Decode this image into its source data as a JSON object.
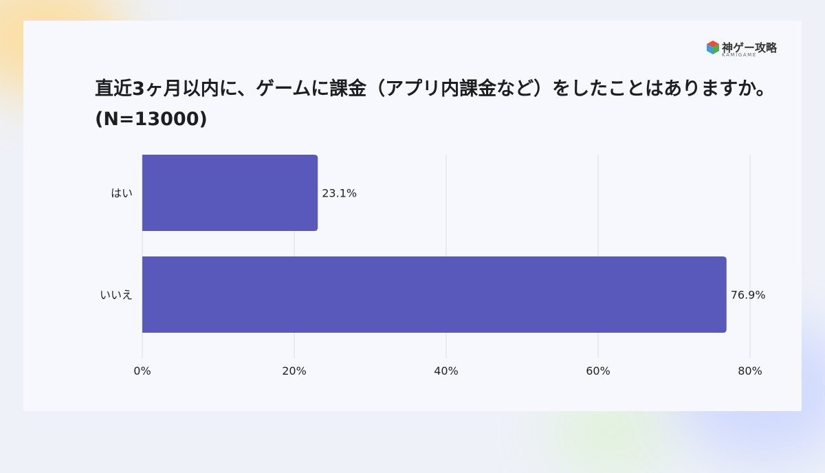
{
  "brand": {
    "name": "神ゲー攻略",
    "sub": "KAMIGAME"
  },
  "colors": {
    "bar": "#5959bc",
    "grid": "#d9dbe2"
  },
  "chart_data": {
    "type": "bar",
    "orientation": "horizontal",
    "title": "直近3ヶ月以内に、ゲームに課金（アプリ内課金など）をしたことはありますか。(N=13000)",
    "categories": [
      "はい",
      "いいえ"
    ],
    "values": [
      23.1,
      76.9
    ],
    "value_labels": [
      "23.1%",
      "76.9%"
    ],
    "xlim": [
      0,
      80
    ],
    "xticks": [
      0,
      20,
      40,
      60,
      80
    ],
    "xtick_labels": [
      "0%",
      "20%",
      "40%",
      "60%",
      "80%"
    ],
    "xlabel": "",
    "ylabel": "",
    "grid": true
  }
}
